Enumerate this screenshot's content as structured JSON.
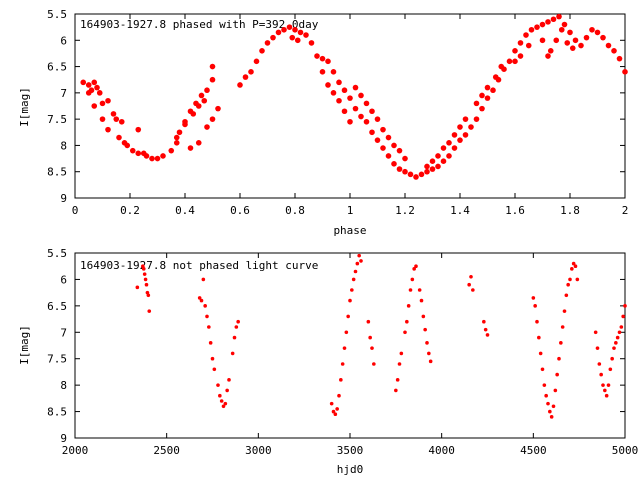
{
  "colors": {
    "points": "#ff0000",
    "axes": "#000000",
    "background": "#ffffff"
  },
  "chart_data": [
    {
      "type": "scatter",
      "title": "164903-1927.8 phased with P=392.0day",
      "xlabel": "phase",
      "ylabel": "I[mag]",
      "xlim": [
        0,
        2
      ],
      "ylim": [
        9,
        5.5
      ],
      "y_inverted": true,
      "grid": false,
      "x_ticks": [
        "0",
        "0.2",
        "0.4",
        "0.6",
        "0.8",
        "1",
        "1.2",
        "1.4",
        "1.6",
        "1.8",
        "2"
      ],
      "y_ticks": [
        "5.5",
        "6",
        "6.5",
        "7",
        "7.5",
        "8",
        "8.5",
        "9"
      ],
      "marker": "filled-circle-large",
      "series": [
        {
          "points": [
            [
              0.03,
              6.8
            ],
            [
              0.05,
              6.85
            ],
            [
              0.06,
              6.95
            ],
            [
              0.05,
              7.0
            ],
            [
              0.07,
              6.8
            ],
            [
              0.08,
              6.9
            ],
            [
              0.07,
              7.25
            ],
            [
              0.09,
              7.0
            ],
            [
              0.1,
              7.2
            ],
            [
              0.12,
              7.15
            ],
            [
              0.1,
              7.5
            ],
            [
              0.12,
              7.7
            ],
            [
              0.14,
              7.4
            ],
            [
              0.15,
              7.5
            ],
            [
              0.16,
              7.85
            ],
            [
              0.17,
              7.55
            ],
            [
              0.18,
              7.95
            ],
            [
              0.19,
              8.0
            ],
            [
              0.21,
              8.1
            ],
            [
              0.23,
              8.15
            ],
            [
              0.25,
              8.15
            ],
            [
              0.26,
              8.2
            ],
            [
              0.28,
              8.25
            ],
            [
              0.3,
              8.25
            ],
            [
              0.32,
              8.2
            ],
            [
              0.23,
              7.7
            ],
            [
              0.35,
              8.1
            ],
            [
              0.37,
              7.95
            ],
            [
              0.38,
              7.75
            ],
            [
              0.4,
              7.55
            ],
            [
              0.42,
              7.35
            ],
            [
              0.44,
              7.2
            ],
            [
              0.46,
              7.05
            ],
            [
              0.48,
              6.95
            ],
            [
              0.5,
              6.75
            ],
            [
              0.5,
              6.5
            ],
            [
              0.52,
              7.3
            ],
            [
              0.5,
              7.5
            ],
            [
              0.48,
              7.65
            ],
            [
              0.45,
              7.95
            ],
            [
              0.42,
              8.05
            ],
            [
              0.37,
              7.85
            ],
            [
              0.4,
              7.6
            ],
            [
              0.43,
              7.4
            ],
            [
              0.45,
              7.25
            ],
            [
              0.47,
              7.15
            ],
            [
              0.6,
              6.85
            ],
            [
              0.62,
              6.7
            ],
            [
              0.64,
              6.6
            ],
            [
              0.66,
              6.4
            ],
            [
              0.68,
              6.2
            ],
            [
              0.7,
              6.05
            ],
            [
              0.72,
              5.95
            ],
            [
              0.74,
              5.85
            ],
            [
              0.76,
              5.8
            ],
            [
              0.78,
              5.75
            ],
            [
              0.8,
              5.8
            ],
            [
              0.82,
              5.85
            ],
            [
              0.84,
              5.9
            ],
            [
              0.86,
              6.05
            ],
            [
              0.79,
              5.95
            ],
            [
              0.81,
              6.0
            ],
            [
              0.88,
              6.3
            ],
            [
              0.9,
              6.35
            ],
            [
              0.92,
              6.4
            ],
            [
              0.94,
              6.6
            ],
            [
              0.96,
              6.8
            ],
            [
              0.98,
              6.95
            ],
            [
              1.0,
              7.1
            ],
            [
              1.02,
              7.3
            ],
            [
              1.04,
              7.45
            ],
            [
              1.06,
              7.55
            ],
            [
              1.08,
              7.75
            ],
            [
              1.1,
              7.9
            ],
            [
              1.12,
              8.05
            ],
            [
              1.14,
              8.2
            ],
            [
              1.16,
              8.35
            ],
            [
              1.18,
              8.45
            ],
            [
              1.2,
              8.5
            ],
            [
              1.22,
              8.55
            ],
            [
              1.24,
              8.6
            ],
            [
              1.26,
              8.55
            ],
            [
              1.28,
              8.5
            ],
            [
              1.3,
              8.45
            ],
            [
              1.32,
              8.4
            ],
            [
              1.34,
              8.3
            ],
            [
              1.36,
              8.2
            ],
            [
              1.38,
              8.05
            ],
            [
              1.4,
              7.9
            ],
            [
              1.42,
              7.8
            ],
            [
              1.44,
              7.65
            ],
            [
              1.46,
              7.5
            ],
            [
              1.48,
              7.3
            ],
            [
              1.5,
              7.1
            ],
            [
              1.52,
              6.95
            ],
            [
              1.54,
              6.75
            ],
            [
              1.56,
              6.55
            ],
            [
              1.58,
              6.4
            ],
            [
              1.6,
              6.2
            ],
            [
              1.62,
              6.05
            ],
            [
              1.64,
              5.9
            ],
            [
              1.66,
              5.8
            ],
            [
              1.68,
              5.75
            ],
            [
              1.7,
              5.7
            ],
            [
              1.72,
              5.65
            ],
            [
              1.74,
              5.6
            ],
            [
              1.76,
              5.55
            ],
            [
              1.78,
              5.7
            ],
            [
              1.8,
              5.85
            ],
            [
              1.82,
              6.0
            ],
            [
              1.84,
              6.1
            ],
            [
              1.86,
              5.95
            ],
            [
              1.88,
              5.8
            ],
            [
              1.9,
              5.85
            ],
            [
              1.92,
              5.95
            ],
            [
              1.94,
              6.1
            ],
            [
              1.96,
              6.2
            ],
            [
              1.98,
              6.35
            ],
            [
              2.0,
              6.6
            ],
            [
              1.7,
              6.0
            ],
            [
              1.72,
              6.3
            ],
            [
              1.73,
              6.2
            ],
            [
              1.75,
              6.0
            ],
            [
              1.77,
              5.8
            ],
            [
              1.79,
              6.05
            ],
            [
              1.81,
              6.15
            ],
            [
              1.02,
              6.9
            ],
            [
              1.04,
              7.05
            ],
            [
              1.06,
              7.2
            ],
            [
              1.08,
              7.35
            ],
            [
              1.1,
              7.5
            ],
            [
              1.12,
              7.7
            ],
            [
              1.14,
              7.85
            ],
            [
              1.16,
              8.0
            ],
            [
              1.18,
              8.1
            ],
            [
              1.2,
              8.25
            ],
            [
              1.28,
              8.4
            ],
            [
              1.3,
              8.3
            ],
            [
              1.32,
              8.2
            ],
            [
              1.34,
              8.05
            ],
            [
              1.36,
              7.95
            ],
            [
              1.38,
              7.8
            ],
            [
              1.4,
              7.65
            ],
            [
              1.42,
              7.5
            ],
            [
              1.46,
              7.2
            ],
            [
              1.48,
              7.05
            ],
            [
              1.5,
              6.9
            ],
            [
              1.53,
              6.7
            ],
            [
              1.55,
              6.5
            ],
            [
              1.6,
              6.4
            ],
            [
              1.62,
              6.3
            ],
            [
              1.65,
              6.1
            ],
            [
              0.9,
              6.6
            ],
            [
              0.92,
              6.85
            ],
            [
              0.94,
              7.0
            ],
            [
              0.96,
              7.15
            ],
            [
              0.98,
              7.35
            ],
            [
              1.0,
              7.55
            ]
          ]
        }
      ]
    },
    {
      "type": "scatter",
      "title": "164903-1927.8 not phased light curve",
      "xlabel": "hjd0",
      "ylabel": "I[mag]",
      "xlim": [
        2000,
        5000
      ],
      "ylim": [
        9,
        5.5
      ],
      "y_inverted": true,
      "grid": false,
      "x_ticks": [
        "2000",
        "2500",
        "3000",
        "3500",
        "4000",
        "4500",
        "5000"
      ],
      "y_ticks": [
        "5.5",
        "6",
        "6.5",
        "7",
        "7.5",
        "8",
        "8.5",
        "9"
      ],
      "marker": "filled-circle-small",
      "series": [
        {
          "points": [
            [
              2340,
              6.15
            ],
            [
              2370,
              5.75
            ],
            [
              2375,
              5.8
            ],
            [
              2380,
              5.9
            ],
            [
              2385,
              6.0
            ],
            [
              2390,
              6.1
            ],
            [
              2395,
              6.25
            ],
            [
              2400,
              6.3
            ],
            [
              2405,
              6.6
            ],
            [
              2680,
              6.35
            ],
            [
              2690,
              6.4
            ],
            [
              2700,
              6.0
            ],
            [
              2710,
              6.5
            ],
            [
              2720,
              6.7
            ],
            [
              2730,
              6.9
            ],
            [
              2740,
              7.2
            ],
            [
              2750,
              7.5
            ],
            [
              2760,
              7.7
            ],
            [
              2780,
              8.0
            ],
            [
              2790,
              8.2
            ],
            [
              2800,
              8.3
            ],
            [
              2810,
              8.4
            ],
            [
              2820,
              8.35
            ],
            [
              2830,
              8.1
            ],
            [
              2840,
              7.9
            ],
            [
              2860,
              7.4
            ],
            [
              2870,
              7.1
            ],
            [
              2880,
              6.9
            ],
            [
              2890,
              6.8
            ],
            [
              3400,
              8.35
            ],
            [
              3410,
              8.5
            ],
            [
              3420,
              8.55
            ],
            [
              3430,
              8.45
            ],
            [
              3440,
              8.2
            ],
            [
              3450,
              7.9
            ],
            [
              3460,
              7.6
            ],
            [
              3470,
              7.3
            ],
            [
              3480,
              7.0
            ],
            [
              3490,
              6.7
            ],
            [
              3500,
              6.4
            ],
            [
              3510,
              6.2
            ],
            [
              3520,
              6.0
            ],
            [
              3530,
              5.85
            ],
            [
              3540,
              5.7
            ],
            [
              3550,
              5.55
            ],
            [
              3560,
              5.65
            ],
            [
              3600,
              6.8
            ],
            [
              3610,
              7.1
            ],
            [
              3620,
              7.3
            ],
            [
              3630,
              7.6
            ],
            [
              3750,
              8.1
            ],
            [
              3760,
              7.9
            ],
            [
              3770,
              7.6
            ],
            [
              3780,
              7.4
            ],
            [
              3800,
              7.0
            ],
            [
              3810,
              6.8
            ],
            [
              3820,
              6.5
            ],
            [
              3830,
              6.2
            ],
            [
              3840,
              6.0
            ],
            [
              3850,
              5.8
            ],
            [
              3860,
              5.75
            ],
            [
              3880,
              6.2
            ],
            [
              3890,
              6.4
            ],
            [
              3900,
              6.7
            ],
            [
              3910,
              6.95
            ],
            [
              3920,
              7.2
            ],
            [
              3930,
              7.4
            ],
            [
              3940,
              7.55
            ],
            [
              4150,
              6.1
            ],
            [
              4160,
              5.95
            ],
            [
              4170,
              6.2
            ],
            [
              4230,
              6.8
            ],
            [
              4240,
              6.95
            ],
            [
              4250,
              7.05
            ],
            [
              4500,
              6.35
            ],
            [
              4510,
              6.5
            ],
            [
              4520,
              6.8
            ],
            [
              4530,
              7.1
            ],
            [
              4540,
              7.4
            ],
            [
              4550,
              7.7
            ],
            [
              4560,
              8.0
            ],
            [
              4570,
              8.2
            ],
            [
              4580,
              8.35
            ],
            [
              4590,
              8.5
            ],
            [
              4600,
              8.6
            ],
            [
              4610,
              8.4
            ],
            [
              4620,
              8.1
            ],
            [
              4630,
              7.8
            ],
            [
              4640,
              7.5
            ],
            [
              4650,
              7.2
            ],
            [
              4660,
              6.9
            ],
            [
              4670,
              6.6
            ],
            [
              4680,
              6.3
            ],
            [
              4690,
              6.1
            ],
            [
              4700,
              6.0
            ],
            [
              4710,
              5.8
            ],
            [
              4720,
              5.7
            ],
            [
              4730,
              5.75
            ],
            [
              4740,
              6.0
            ],
            [
              4840,
              7.0
            ],
            [
              4850,
              7.3
            ],
            [
              4860,
              7.6
            ],
            [
              4870,
              7.8
            ],
            [
              4880,
              8.0
            ],
            [
              4890,
              8.1
            ],
            [
              4900,
              8.2
            ],
            [
              4910,
              8.0
            ],
            [
              4920,
              7.7
            ],
            [
              4930,
              7.5
            ],
            [
              4940,
              7.3
            ],
            [
              4950,
              7.2
            ],
            [
              4960,
              7.1
            ],
            [
              4970,
              7.0
            ],
            [
              4980,
              6.9
            ],
            [
              4990,
              6.7
            ],
            [
              5000,
              6.5
            ]
          ]
        }
      ]
    }
  ]
}
